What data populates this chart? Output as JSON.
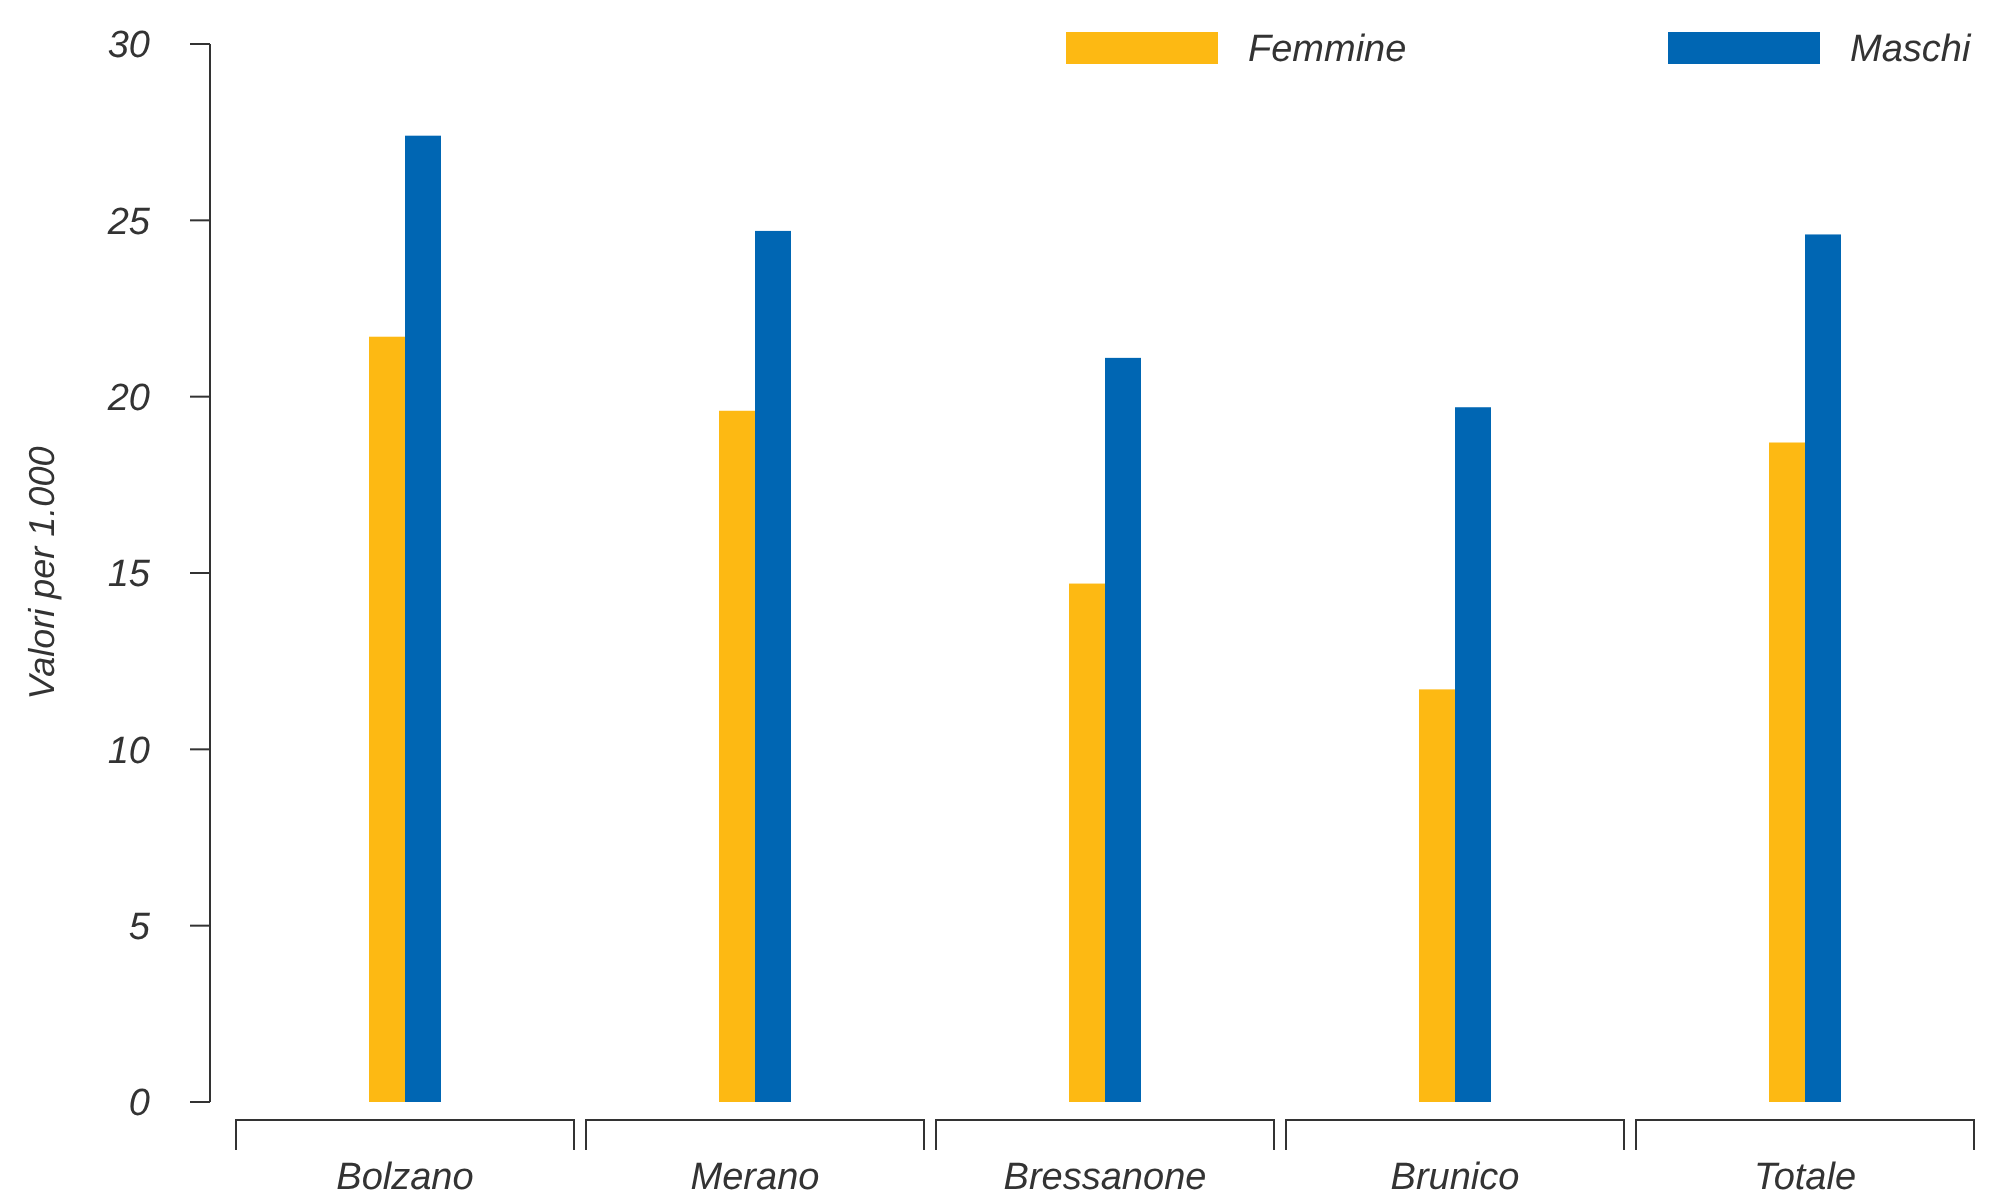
{
  "chart_data": {
    "type": "bar",
    "ylabel": "Valori per 1.000",
    "categories": [
      "Bolzano",
      "Merano",
      "Bressanone",
      "Brunico",
      "Totale"
    ],
    "series": [
      {
        "name": "Femmine",
        "color": "#fdb913",
        "values": [
          21.7,
          19.6,
          14.7,
          11.7,
          18.7
        ]
      },
      {
        "name": "Maschi",
        "color": "#0066b3",
        "values": [
          27.4,
          24.7,
          21.1,
          19.7,
          24.6
        ]
      }
    ],
    "ylim": [
      0,
      30
    ],
    "yticks": [
      0,
      5,
      10,
      15,
      20,
      25,
      30
    ],
    "grid": false,
    "legend": "top right"
  }
}
